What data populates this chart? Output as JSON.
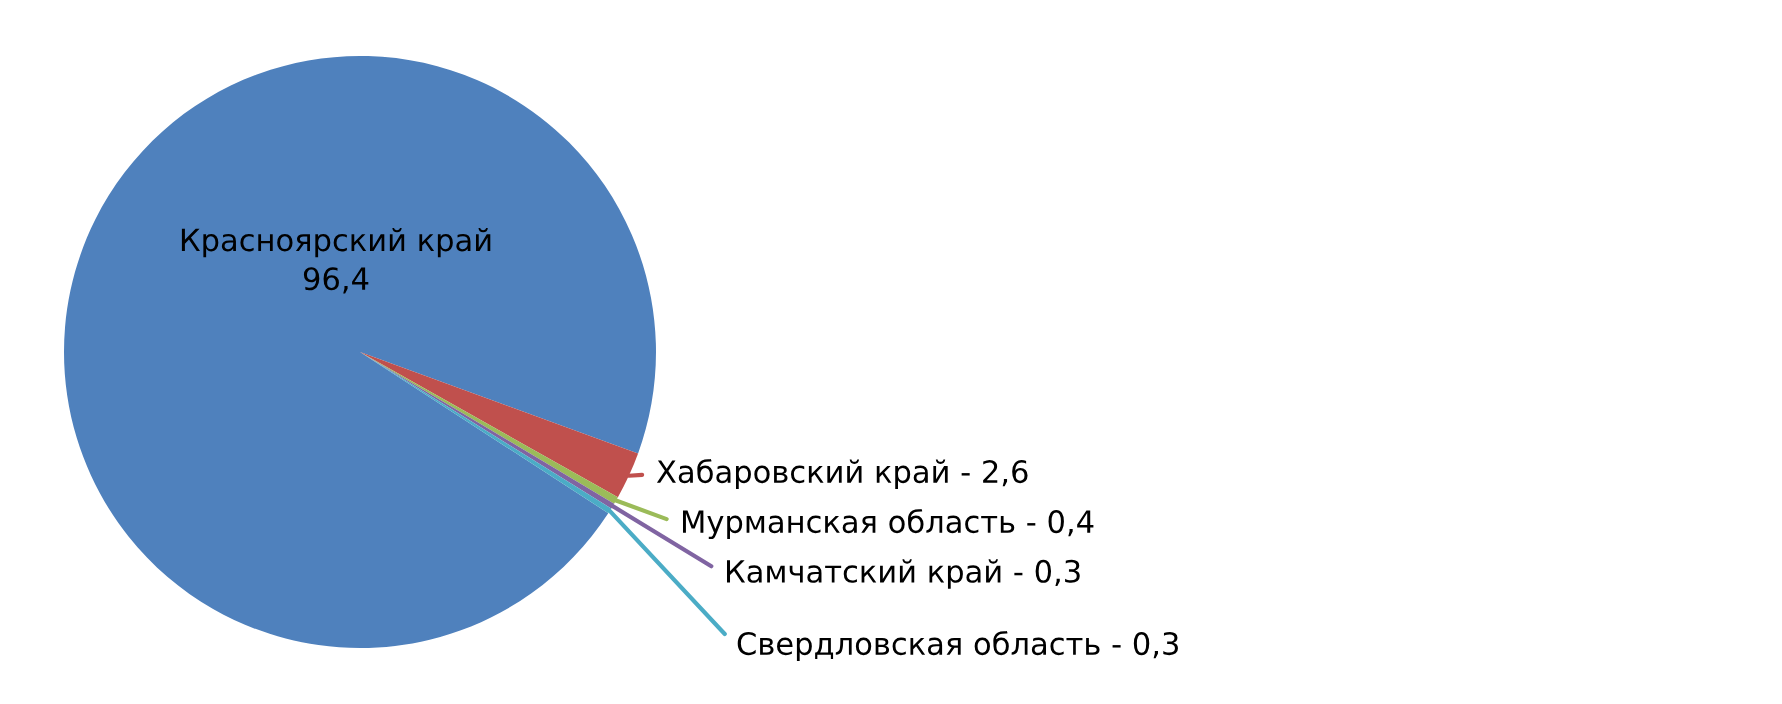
{
  "chart_data": {
    "type": "pie",
    "categories": [
      "Красноярский край",
      "Хабаровский край",
      "Мурманская область",
      "Камчатский край",
      "Свердловская область"
    ],
    "values": [
      96.4,
      2.6,
      0.4,
      0.3,
      0.3
    ],
    "value_labels": [
      "96,4",
      "2,6",
      "0,4",
      "0,3",
      "0,3"
    ],
    "colors": [
      "#4f81bd",
      "#c0504d",
      "#9bbb59",
      "#8064a2",
      "#4bacc6"
    ],
    "legend": false
  }
}
